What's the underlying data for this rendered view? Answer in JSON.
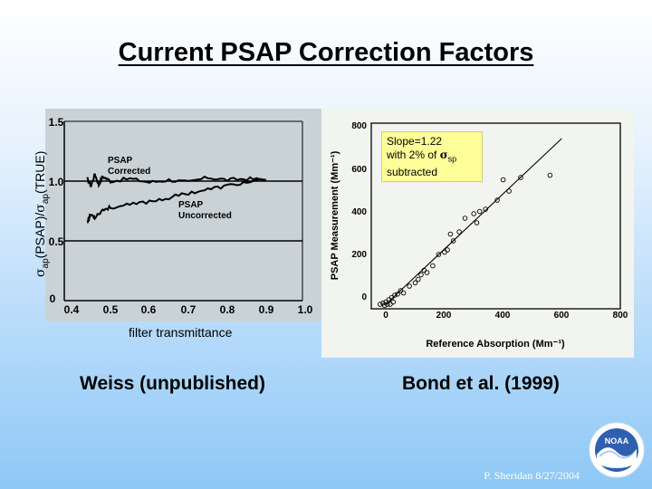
{
  "title": "Current PSAP Correction Factors",
  "left_chart": {
    "ylabel": "σap(PSAP)/σap(TRUE)",
    "ylabel_parts": {
      "s1": "σ",
      "sub1": "ap",
      "mid": "(PSAP)/",
      "s2": "σ",
      "sub2": "ap",
      "end": "(TRUE)"
    },
    "xlabel": "filter transmittance",
    "y_ticks": [
      "0",
      "0.5",
      "1.0",
      "1.5"
    ],
    "x_ticks": [
      "0.4",
      "0.5",
      "0.6",
      "0.7",
      "0.8",
      "0.9",
      "1.0"
    ],
    "series_labels": {
      "corrected_1": "PSAP",
      "corrected_2": "Corrected",
      "uncorrected_1": "PSAP",
      "uncorrected_2": "Uncorrected"
    },
    "caption": "Weiss (unpublished)"
  },
  "right_chart": {
    "ylabel": "PSAP Measurement (Mm⁻¹)",
    "xlabel": "Reference Absorption (Mm⁻¹)",
    "y_ticks": [
      "0",
      "200",
      "400",
      "600",
      "800"
    ],
    "x_ticks": [
      "0",
      "200",
      "400",
      "600",
      "800"
    ],
    "annotation": {
      "line1": "Slope=1.22",
      "line2_pre": "with 2% of ",
      "sigma": "σ",
      "sub": "sp",
      "line3": "subtracted"
    },
    "caption": "Bond et al. (1999)"
  },
  "chart_data": [
    {
      "type": "line",
      "xlabel": "filter transmittance",
      "ylabel": "σap(PSAP)/σap(TRUE)",
      "xlim": [
        0.4,
        1.0
      ],
      "ylim": [
        0,
        1.5
      ],
      "grid": false,
      "hlines": [
        1.0,
        0.5
      ],
      "series": [
        {
          "name": "PSAP Corrected",
          "x": [
            0.44,
            0.45,
            0.46,
            0.47,
            0.48,
            0.5,
            0.55,
            0.6,
            0.65,
            0.7,
            0.75,
            0.8,
            0.85,
            0.9
          ],
          "y": [
            1.02,
            0.96,
            1.06,
            0.97,
            1.04,
            1.0,
            1.02,
            0.99,
            1.01,
            0.99,
            1.03,
            1.01,
            1.02,
            1.01
          ]
        },
        {
          "name": "PSAP Uncorrected",
          "x": [
            0.44,
            0.45,
            0.46,
            0.48,
            0.5,
            0.55,
            0.6,
            0.65,
            0.7,
            0.75,
            0.8,
            0.85,
            0.9
          ],
          "y": [
            0.66,
            0.72,
            0.7,
            0.76,
            0.78,
            0.8,
            0.83,
            0.86,
            0.9,
            0.93,
            0.96,
            0.99,
            1.01
          ]
        }
      ]
    },
    {
      "type": "scatter",
      "xlabel": "Reference Absorption (Mm⁻¹)",
      "ylabel": "PSAP Measurement (Mm⁻¹)",
      "xlim": [
        -50,
        800
      ],
      "ylim": [
        -20,
        800
      ],
      "grid": false,
      "x": [
        -20,
        -10,
        -5,
        0,
        5,
        10,
        15,
        20,
        25,
        30,
        40,
        50,
        60,
        80,
        100,
        110,
        120,
        130,
        140,
        160,
        180,
        200,
        210,
        220,
        230,
        250,
        270,
        300,
        310,
        320,
        340,
        380,
        400,
        420,
        460,
        560
      ],
      "y": [
        0,
        5,
        -5,
        10,
        0,
        20,
        0,
        30,
        10,
        40,
        45,
        60,
        50,
        80,
        95,
        110,
        130,
        150,
        140,
        170,
        220,
        230,
        240,
        310,
        280,
        320,
        380,
        400,
        360,
        410,
        420,
        460,
        550,
        500,
        560,
        570
      ],
      "fit": {
        "slope": 1.22,
        "x": [
          0,
          600
        ],
        "y": [
          0,
          732
        ]
      },
      "annotation": "Slope=1.22 with 2% of σsp subtracted"
    }
  ],
  "footer": "P. Sheridan  8/27/2004",
  "logo_text": "NOAA"
}
